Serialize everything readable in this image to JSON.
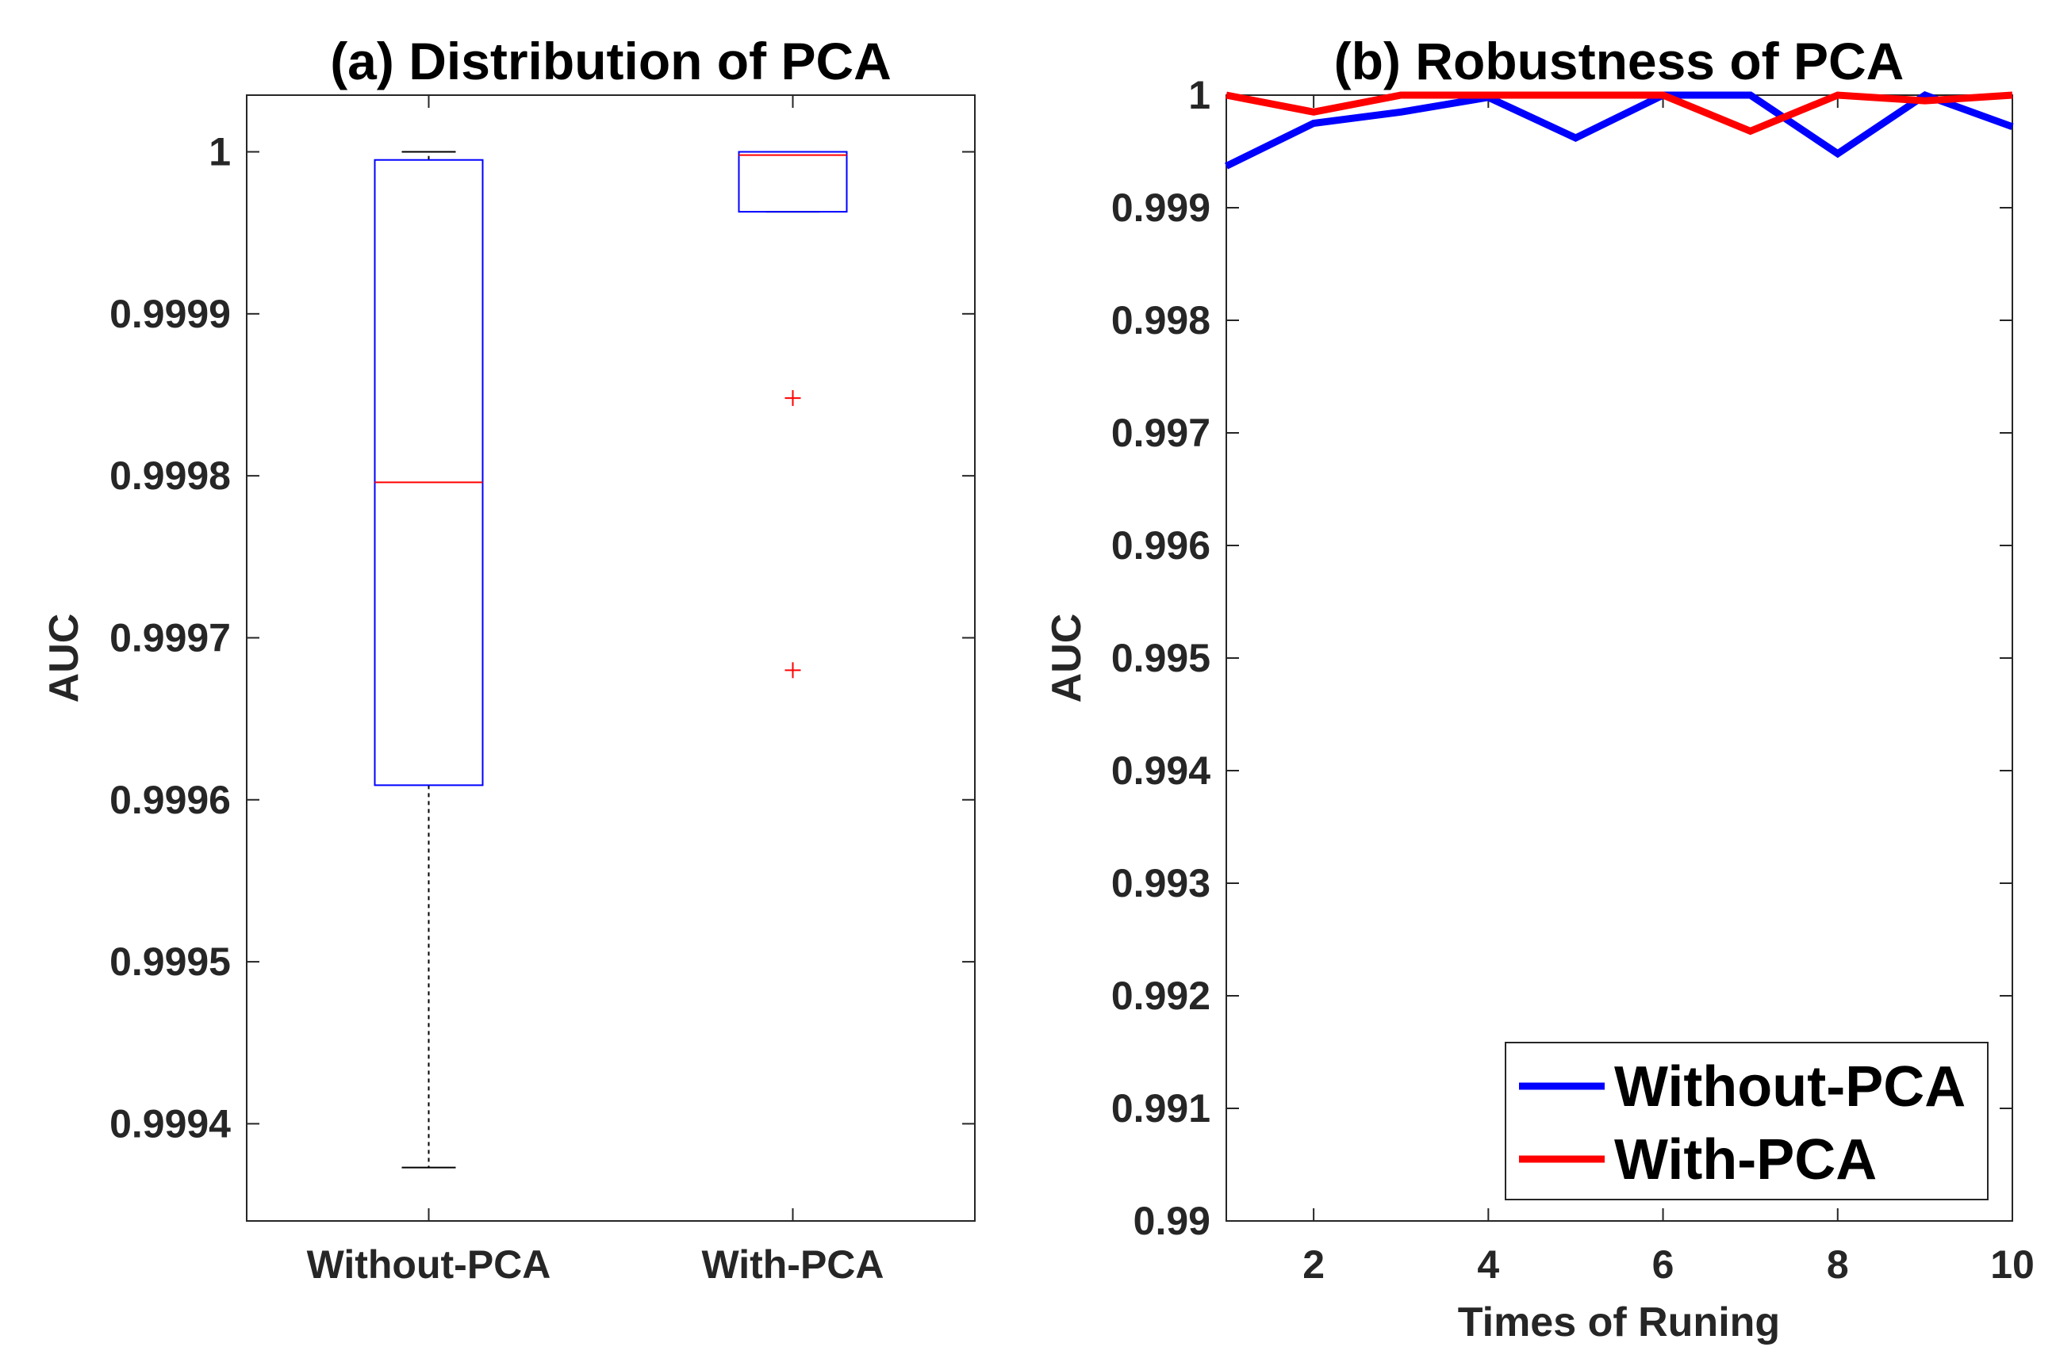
{
  "chart_data": [
    {
      "type": "box",
      "title": "(a) Distribution of PCA",
      "ylabel": "AUC",
      "xlabel": "",
      "ylim": [
        0.99934,
        1.000035
      ],
      "yticks": [
        0.9994,
        0.9995,
        0.9996,
        0.9997,
        0.9998,
        0.9999,
        1
      ],
      "ytick_labels": [
        "0.9994",
        "0.9995",
        "0.9996",
        "0.9997",
        "0.9998",
        "0.9999",
        "1"
      ],
      "categories": [
        "Without-PCA",
        "With-PCA"
      ],
      "boxes": [
        {
          "name": "Without-PCA",
          "whisker_low": 0.999373,
          "q1": 0.999609,
          "median": 0.999796,
          "q3": 0.999995,
          "whisker_high": 1.0,
          "outliers": []
        },
        {
          "name": "With-PCA",
          "whisker_low": 0.999963,
          "q1": 0.999963,
          "median": 0.999998,
          "q3": 1.0,
          "whisker_high": 1.0,
          "outliers": [
            0.999848,
            0.99968
          ]
        }
      ],
      "colors": {
        "box": "#0000ff",
        "median": "#ff0000",
        "whisker": "#000000",
        "outlier": "#ff0000"
      }
    },
    {
      "type": "line",
      "title": "(b) Robustness of PCA",
      "xlabel": "Times of Runing",
      "ylabel": "AUC",
      "xlim": [
        1,
        10
      ],
      "ylim": [
        0.99,
        1
      ],
      "xticks": [
        2,
        4,
        6,
        8,
        10
      ],
      "xtick_labels": [
        "2",
        "4",
        "6",
        "8",
        "10"
      ],
      "yticks": [
        0.99,
        0.991,
        0.992,
        0.993,
        0.994,
        0.995,
        0.996,
        0.997,
        0.998,
        0.999,
        1
      ],
      "ytick_labels": [
        "0.99",
        "0.991",
        "0.992",
        "0.993",
        "0.994",
        "0.995",
        "0.996",
        "0.997",
        "0.998",
        "0.999",
        "1"
      ],
      "x": [
        1,
        2,
        3,
        4,
        5,
        6,
        7,
        8,
        9,
        10
      ],
      "series": [
        {
          "name": "Without-PCA",
          "color": "#0000ff",
          "values": [
            0.99937,
            0.99975,
            0.99985,
            0.99998,
            0.99962,
            1.0,
            1.0,
            0.99948,
            1.0,
            0.99972
          ]
        },
        {
          "name": "With-PCA",
          "color": "#ff0000",
          "values": [
            1.0,
            0.99985,
            1.0,
            1.0,
            1.0,
            1.0,
            0.99968,
            1.0,
            0.99995,
            1.0
          ]
        }
      ],
      "legend": {
        "location": "bottom-right",
        "entries": [
          "Without-PCA",
          "With-PCA"
        ]
      }
    }
  ]
}
